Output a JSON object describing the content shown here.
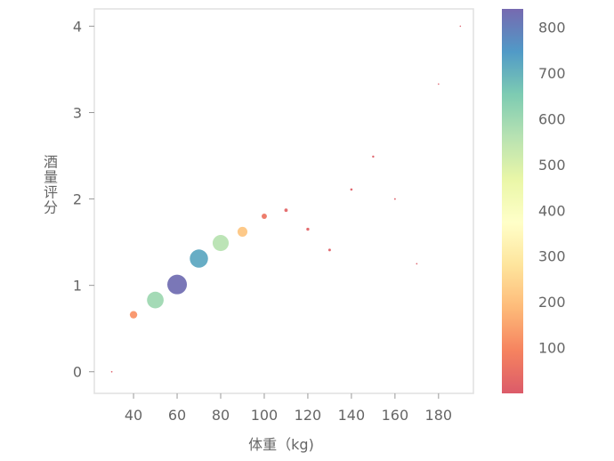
{
  "chart_data": {
    "type": "scatter",
    "xlabel": "体重（kg)",
    "ylabel": "酒量评分",
    "xlim": [
      22,
      196
    ],
    "ylim": [
      -0.25,
      4.2
    ],
    "x_ticks": [
      40,
      60,
      80,
      100,
      120,
      140,
      160,
      180
    ],
    "y_ticks": [
      0,
      1,
      2,
      3,
      4
    ],
    "grid": false,
    "size_encodes": "color value",
    "colorbar": {
      "min": 0,
      "max": 840,
      "ticks": [
        100,
        200,
        300,
        400,
        500,
        600,
        700,
        800
      ],
      "stops": [
        "#d53e4f",
        "#f46d43",
        "#fdae61",
        "#fee08b",
        "#ffffbf",
        "#e6f598",
        "#abdda4",
        "#66c2a5",
        "#3288bd",
        "#5e4fa2"
      ]
    },
    "points": [
      {
        "x": 30,
        "y": 0.0,
        "value": 5
      },
      {
        "x": 40,
        "y": 0.66,
        "value": 120
      },
      {
        "x": 50,
        "y": 0.83,
        "value": 600
      },
      {
        "x": 60,
        "y": 1.01,
        "value": 830
      },
      {
        "x": 70,
        "y": 1.31,
        "value": 720
      },
      {
        "x": 80,
        "y": 1.49,
        "value": 560
      },
      {
        "x": 90,
        "y": 1.62,
        "value": 210
      },
      {
        "x": 100,
        "y": 1.8,
        "value": 60
      },
      {
        "x": 110,
        "y": 1.87,
        "value": 25
      },
      {
        "x": 120,
        "y": 1.65,
        "value": 20
      },
      {
        "x": 130,
        "y": 1.41,
        "value": 15
      },
      {
        "x": 140,
        "y": 2.11,
        "value": 12
      },
      {
        "x": 150,
        "y": 2.49,
        "value": 10
      },
      {
        "x": 160,
        "y": 2.0,
        "value": 6
      },
      {
        "x": 170,
        "y": 1.25,
        "value": 5
      },
      {
        "x": 180,
        "y": 3.33,
        "value": 4
      },
      {
        "x": 190,
        "y": 4.0,
        "value": 3
      }
    ]
  }
}
